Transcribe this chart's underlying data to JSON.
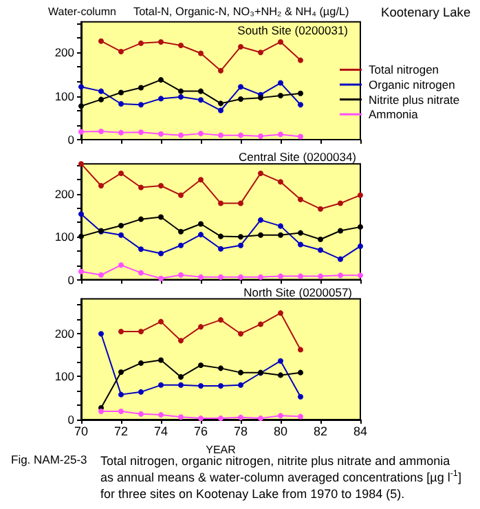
{
  "chart_data": [
    {
      "type": "line",
      "title": "South Site (0200031)",
      "annotations": [
        "Water-column",
        "Total-N, Organic-N, NO₃+NH₂ & NH₄ (µg/L)",
        "Kootenary Lake"
      ],
      "x": [
        70,
        71,
        72,
        73,
        74,
        75,
        76,
        77,
        78,
        79,
        80,
        81
      ],
      "series": [
        {
          "name": "Total nitrogen",
          "color": "#b01010",
          "values": [
            null,
            226,
            202,
            221,
            224,
            216,
            198,
            158,
            213,
            200,
            224,
            182
          ]
        },
        {
          "name": "Organic nitrogen",
          "color": "#0000c0",
          "values": [
            121,
            111,
            82,
            80,
            94,
            98,
            91,
            67,
            121,
            103,
            130,
            80
          ]
        },
        {
          "name": "Nitrite plus nitrate",
          "color": "#000000",
          "values": [
            77,
            92,
            108,
            119,
            137,
            111,
            111,
            83,
            93,
            96,
            101,
            106
          ]
        },
        {
          "name": "Ammonia",
          "color": "#ff50ff",
          "values": [
            18,
            19,
            16,
            17,
            13,
            10,
            14,
            10,
            10,
            8,
            12,
            7
          ]
        }
      ],
      "xlim": [
        70,
        84
      ],
      "xticks": [
        70,
        72,
        74,
        76,
        78,
        80,
        82,
        84
      ],
      "ylim": [
        0,
        270
      ],
      "yticks": [
        0,
        {
          "value": 33.3,
          "label": null
        },
        {
          "value": 66.7,
          "label": null
        },
        100,
        {
          "value": 133.3,
          "label": null
        },
        {
          "value": 166.7,
          "label": null
        },
        200,
        {
          "value": 233.3,
          "label": null
        },
        {
          "value": 266.7,
          "label": null
        }
      ],
      "tick_labels": "y",
      "marker": "circle",
      "legend": "right"
    },
    {
      "type": "line",
      "title": "Central Site (0200034)",
      "x": [
        70,
        71,
        72,
        73,
        74,
        75,
        76,
        77,
        78,
        79,
        80,
        81,
        82,
        83,
        84
      ],
      "series": [
        {
          "color": "#b01010",
          "values": [
            270,
            219,
            248,
            215,
            219,
            197,
            233,
            178,
            178,
            248,
            228,
            187,
            165,
            178,
            197
          ]
        },
        {
          "color": "#0000c0",
          "values": [
            153,
            112,
            104,
            71,
            61,
            80,
            105,
            72,
            80,
            139,
            125,
            82,
            69,
            48,
            78
          ]
        },
        {
          "color": "#000000",
          "values": [
            101,
            114,
            126,
            141,
            146,
            112,
            130,
            101,
            100,
            104,
            104,
            109,
            94,
            114,
            123
          ]
        },
        {
          "color": "#ff50ff",
          "values": [
            19,
            11,
            34,
            16,
            3,
            11,
            6,
            6,
            6,
            6,
            8,
            8,
            8,
            10,
            10
          ]
        }
      ],
      "xlim": [
        70,
        84
      ],
      "xticks": [
        70,
        72,
        74,
        76,
        78,
        80,
        82,
        84
      ],
      "ylim": [
        0,
        270
      ],
      "yticks": [
        0,
        {
          "value": 33.3,
          "label": null
        },
        {
          "value": 66.7,
          "label": null
        },
        100,
        {
          "value": 133.3,
          "label": null
        },
        {
          "value": 166.7,
          "label": null
        },
        200,
        {
          "value": 233.3,
          "label": null
        },
        {
          "value": 266.7,
          "label": null
        }
      ],
      "tick_labels": "y",
      "marker": "circle"
    },
    {
      "type": "line",
      "title": "North Site (0200057)",
      "xlabel": "YEAR",
      "annotations": [
        "Fig. NAM-25-3",
        "Total nitrogen, organic nitrogen, nitrite plus nitrate and ammonia as annual means & water-column averaged concentrations [µg l$^{-1}$] for three sites on Kootenay Lake from 1970 to 1984 (5)."
      ],
      "x": [
        71,
        72,
        73,
        74,
        75,
        76,
        77,
        78,
        79,
        80,
        81
      ],
      "series": [
        {
          "color": "#b01010",
          "values": [
            null,
            204,
            204,
            227,
            183,
            215,
            231,
            199,
            221,
            247,
            162
          ]
        },
        {
          "color": "#0000c0",
          "values": [
            199,
            58,
            64,
            80,
            80,
            78,
            78,
            80,
            108,
            136,
            53
          ]
        },
        {
          "color": "#000000",
          "values": [
            27,
            110,
            131,
            138,
            99,
            126,
            119,
            109,
            109,
            103,
            109
          ]
        },
        {
          "color": "#ff50ff",
          "values": [
            19,
            19,
            13,
            11,
            6,
            3,
            3,
            5,
            3,
            9,
            7
          ]
        }
      ],
      "xlim": [
        70,
        84
      ],
      "xticks": [
        70,
        72,
        74,
        76,
        78,
        80,
        82,
        84
      ],
      "ylim": [
        0,
        280
      ],
      "yticks": [
        0,
        {
          "value": 33.3,
          "label": null
        },
        {
          "value": 66.7,
          "label": null
        },
        100,
        {
          "value": 133.3,
          "label": null
        },
        {
          "value": 166.7,
          "label": null
        },
        200,
        {
          "value": 233.3,
          "label": null
        },
        {
          "value": 266.7,
          "label": null
        }
      ],
      "marker": "circle"
    }
  ]
}
